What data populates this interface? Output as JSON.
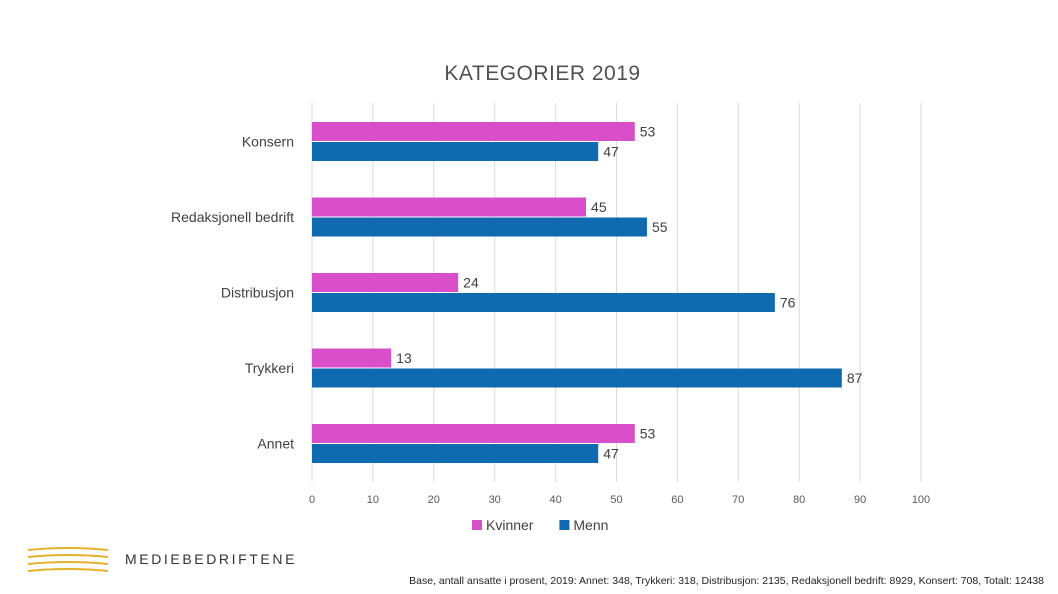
{
  "chart_data": {
    "type": "bar",
    "orientation": "horizontal",
    "title": "KATEGORIER 2019",
    "xlabel": "",
    "ylabel": "",
    "categories": [
      "Konsern",
      "Redaksjonell bedrift",
      "Distribusjon",
      "Trykkeri",
      "Annet"
    ],
    "series": [
      {
        "name": "Kvinner",
        "color": "#d94fc9",
        "values": [
          53,
          45,
          24,
          13,
          53
        ]
      },
      {
        "name": "Menn",
        "color": "#0f6ab0",
        "values": [
          47,
          55,
          76,
          87,
          47
        ]
      }
    ],
    "xlim": [
      0,
      100
    ],
    "xticks": [
      "0",
      "10",
      "20",
      "30",
      "40",
      "50",
      "60",
      "70",
      "80",
      "90",
      "100"
    ],
    "grid": true,
    "legend_position": "bottom",
    "data_labels": true
  },
  "brand": {
    "name": "MEDIEBEDRIFTENE",
    "logo_color": "#e6b02e"
  },
  "footnote": "Base, antall ansatte i prosent, 2019:  Annet: 348, Trykkeri: 318, Distribusjon: 2135, Redaksjonell bedrift: 8929, Konsert: 708, Totalt: 12438"
}
